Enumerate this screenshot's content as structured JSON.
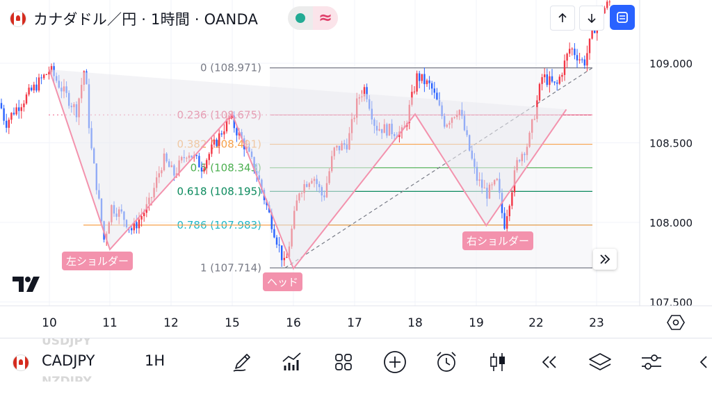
{
  "header": {
    "title": "カナダドル／円 · 1時間 · OANDA",
    "indicator_approx_symbol": "≈",
    "colors": {
      "indicator_dot": "#22ab94",
      "indicator_approx": "#e0406b",
      "fullscreen_button": "#2962ff"
    }
  },
  "nav_icons": [
    "arrow-up-icon",
    "arrow-down-icon",
    "fullscreen-icon"
  ],
  "labels": {
    "left_shoulder": "左ショルダー",
    "head": "ヘッド",
    "right_shoulder": "右ショルダー"
  },
  "fib_levels": [
    {
      "text": "0 (108.971)",
      "ratio": 0,
      "price": 108.971,
      "color": "#787b86"
    },
    {
      "text": "0.236 (108.675)",
      "ratio": 0.236,
      "price": 108.675,
      "color": "#e0406b"
    },
    {
      "text": "0.382 (108.491)",
      "ratio": 0.382,
      "price": 108.491,
      "color": "#f7a14a"
    },
    {
      "text": "0.5 (108.343)",
      "ratio": 0.5,
      "price": 108.343,
      "color": "#4caf50"
    },
    {
      "text": "0.618 (108.195)",
      "ratio": 0.618,
      "price": 108.195,
      "color": "#0b8a5d"
    },
    {
      "text": "0.786 (107.983)",
      "ratio": 0.786,
      "price": 107.983,
      "color": "#22b8c6"
    },
    {
      "text": "1 (107.714)",
      "ratio": 1,
      "price": 107.714,
      "color": "#787b86"
    }
  ],
  "chart_data": {
    "type": "candlestick",
    "symbol": "CADJPY",
    "interval": "1H",
    "price_axis": {
      "labels": [
        "109.000",
        "108.500",
        "108.000",
        "107.500"
      ],
      "values": [
        109.0,
        108.5,
        108.0,
        107.5
      ]
    },
    "time_axis": {
      "labels": [
        "10",
        "11",
        "12",
        "15",
        "16",
        "17",
        "18",
        "19",
        "22",
        "23"
      ]
    },
    "annotations": [
      "左ショルダー",
      "ヘッド",
      "右ショルダー"
    ],
    "pattern": "head-and-shoulders (inverse)",
    "pattern_points": [
      {
        "day": 10,
        "price": 108.96
      },
      {
        "day": 11,
        "price": 107.83
      },
      {
        "day": 15,
        "price": 108.68
      },
      {
        "day": 16,
        "price": 107.71
      },
      {
        "day": 18,
        "price": 108.68
      },
      {
        "day": 19.5,
        "price": 107.98
      },
      {
        "day": 22.5,
        "price": 108.71
      }
    ],
    "ohlc_approx": [
      {
        "day": 10,
        "close": 108.95
      },
      {
        "day": 11,
        "close": 107.9
      },
      {
        "day": 12,
        "close": 108.35
      },
      {
        "day": 15,
        "close": 108.45
      },
      {
        "day": 16,
        "close": 107.8
      },
      {
        "day": 17,
        "close": 108.85
      },
      {
        "day": 18,
        "close": 108.9
      },
      {
        "day": 19,
        "close": 108.25
      },
      {
        "day": 22,
        "close": 108.95
      },
      {
        "day": 23,
        "close": 109.3
      }
    ],
    "colors": {
      "up": "#f23645",
      "down": "#2962ff"
    },
    "grid": true
  },
  "toolbar": {
    "symbol": "CADJPY",
    "interval": "1H",
    "ghost_prev_symbol": "USDJPY",
    "ghost_next_symbol": "NZDJPY",
    "icons": [
      "drawing-pen-icon",
      "indicators-icon",
      "grid-icon",
      "add-icon",
      "alert-clock-icon",
      "candlestick-icon",
      "replay-icon",
      "layers-icon",
      "settings-sliders-icon",
      "back-icon"
    ]
  }
}
